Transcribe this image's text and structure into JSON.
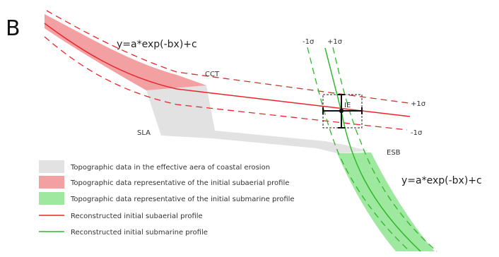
{
  "panel_letter": "B",
  "equations": {
    "subaerial": "y=a*exp(-bx)+c",
    "submarine": "y=a*exp(-bx)+c"
  },
  "labels": {
    "cct": "CCT",
    "sla": "SLA",
    "esb": "ESB",
    "ie": "IE"
  },
  "sigma": {
    "red_plus": "+1σ",
    "red_minus": "-1σ",
    "green_minus": "-1σ",
    "green_plus": "+1σ"
  },
  "legend": [
    "Topographic data in the effective aera of coastal erosion",
    "Topographic data representative of the initial subaerial profile",
    "Topographic data representative of the initial submarine profile",
    "Reconstructed initial subaerial profile",
    "Reconstructed initial submarine profile"
  ],
  "colors": {
    "red": "#e8262c",
    "red_fill": "#f2a0a2",
    "green": "#2fb82c",
    "green_fill": "#9fe8a0",
    "gray_fill": "#e2e2e2"
  }
}
